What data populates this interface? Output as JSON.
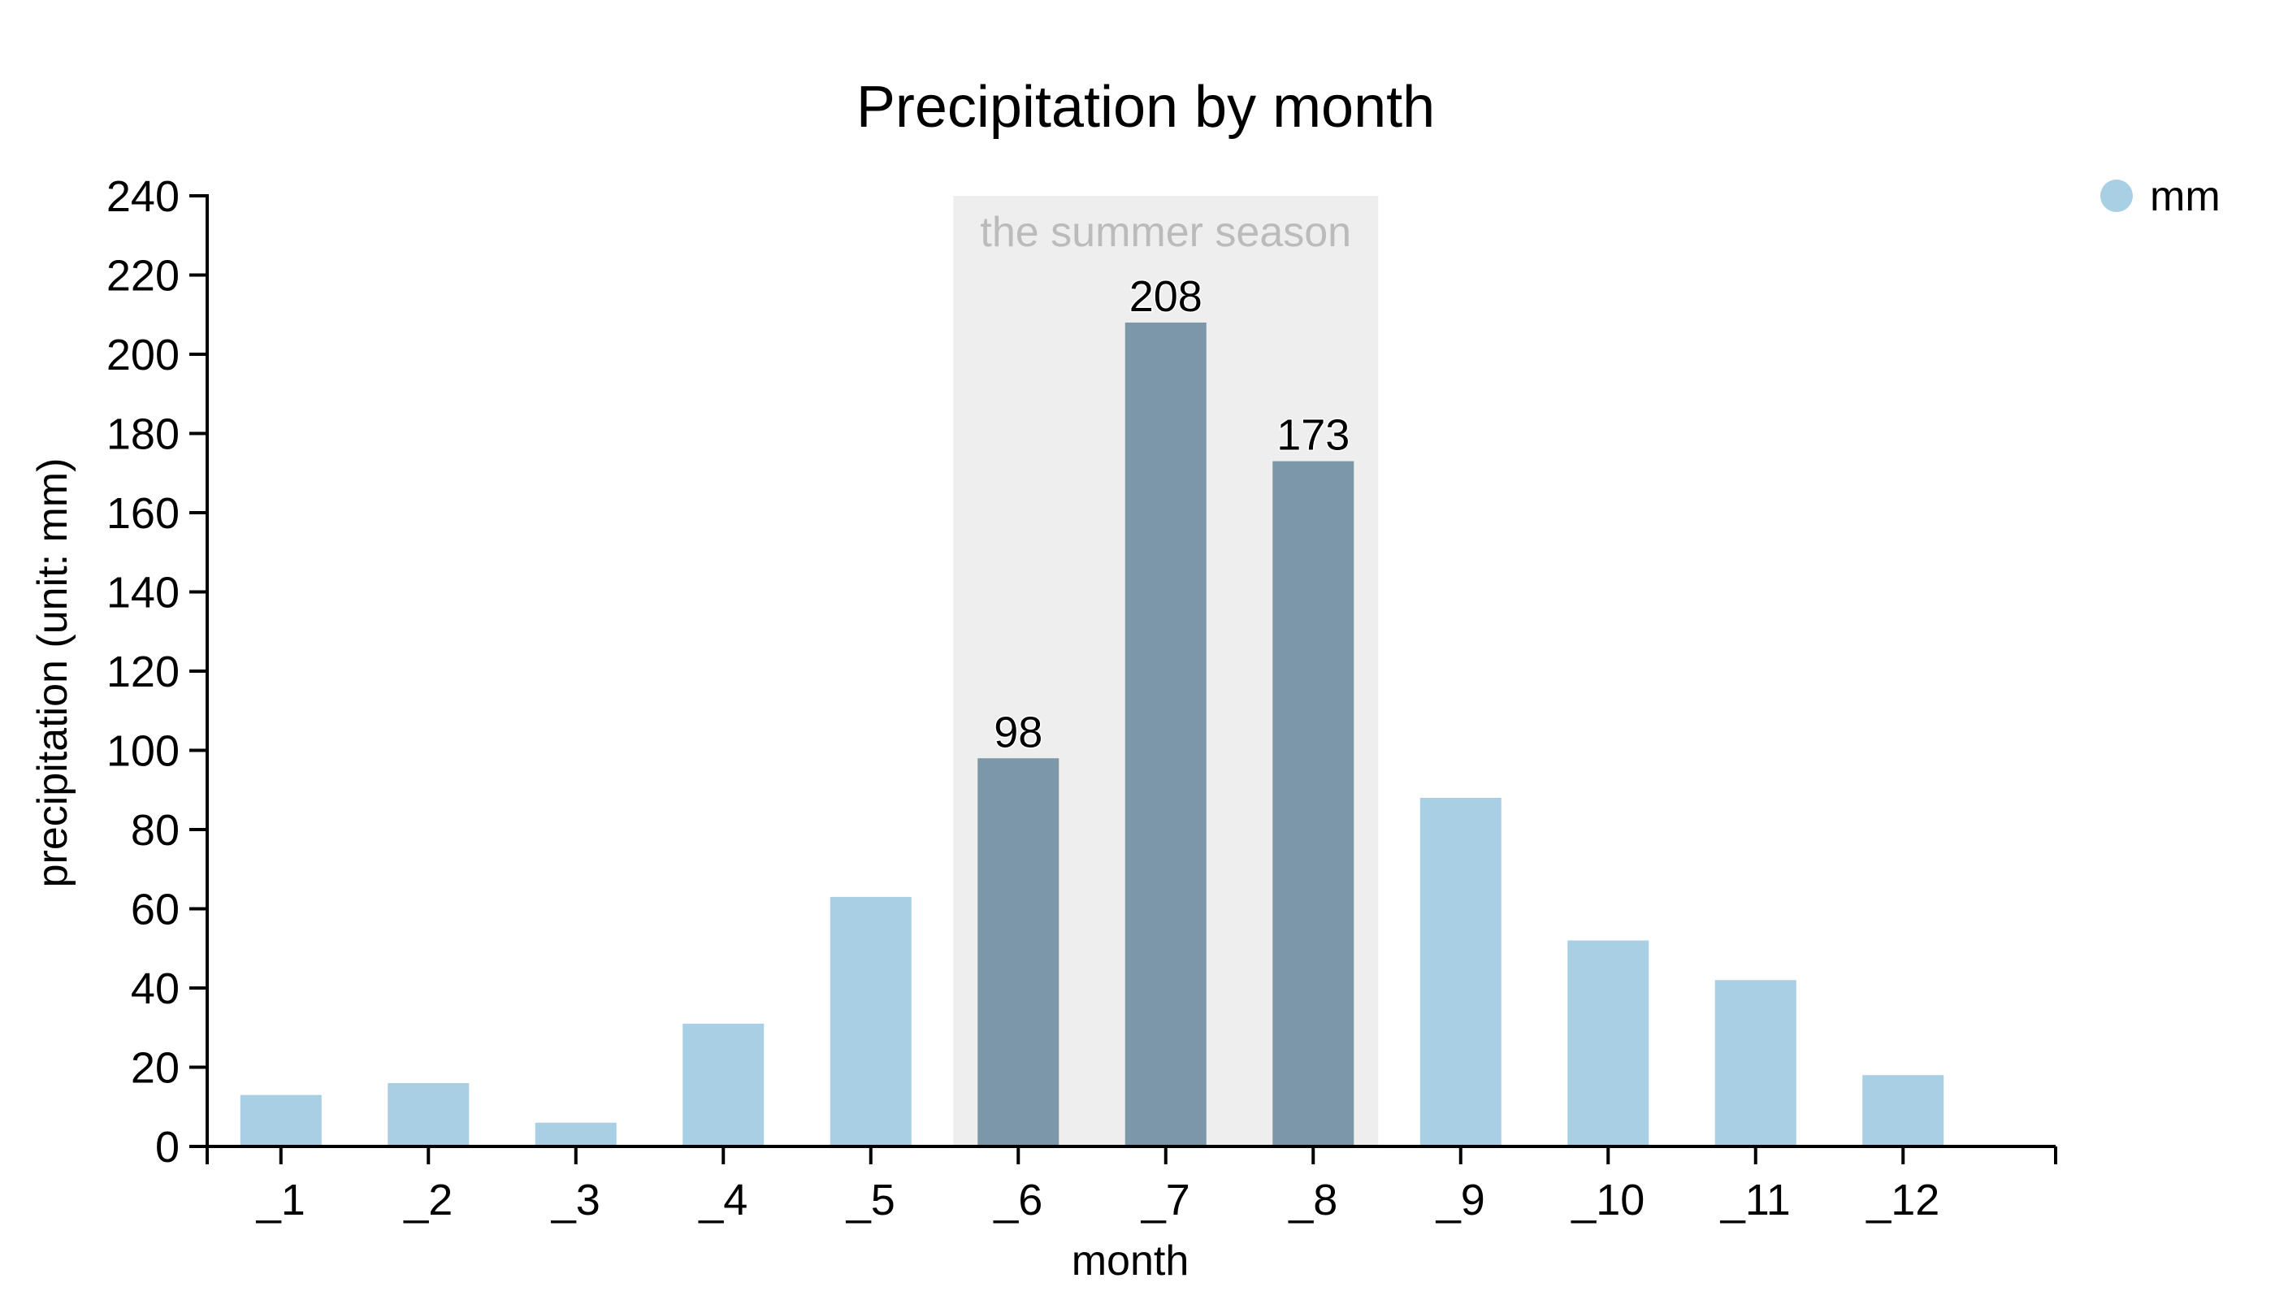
{
  "chart_data": {
    "type": "bar",
    "title": "Precipitation by month",
    "xlabel": "month",
    "ylabel": "precipitation (unit: mm)",
    "ylim": [
      0,
      240
    ],
    "yticks": [
      0,
      20,
      40,
      60,
      80,
      100,
      120,
      140,
      160,
      180,
      200,
      220,
      240
    ],
    "categories": [
      "_1",
      "_2",
      "_3",
      "_4",
      "_5",
      "_6",
      "_7",
      "_8",
      "_9",
      "_10",
      "_11",
      "_12"
    ],
    "series": [
      {
        "name": "mm",
        "values": [
          13,
          16,
          6,
          31,
          63,
          98,
          208,
          173,
          88,
          52,
          42,
          18
        ]
      }
    ],
    "highlight": {
      "label": "the summer season",
      "categories": [
        "_6",
        "_7",
        "_8"
      ],
      "data_labels": [
        "98",
        "208",
        "173"
      ]
    },
    "legend_position": "top-right",
    "grid": false,
    "colors": {
      "bar": "#a8cfe3",
      "bar_highlight": "#7b97a8",
      "band": "#eeeeee",
      "band_text": "#bbbbbb",
      "legend_marker": "#a8cfe3"
    }
  }
}
